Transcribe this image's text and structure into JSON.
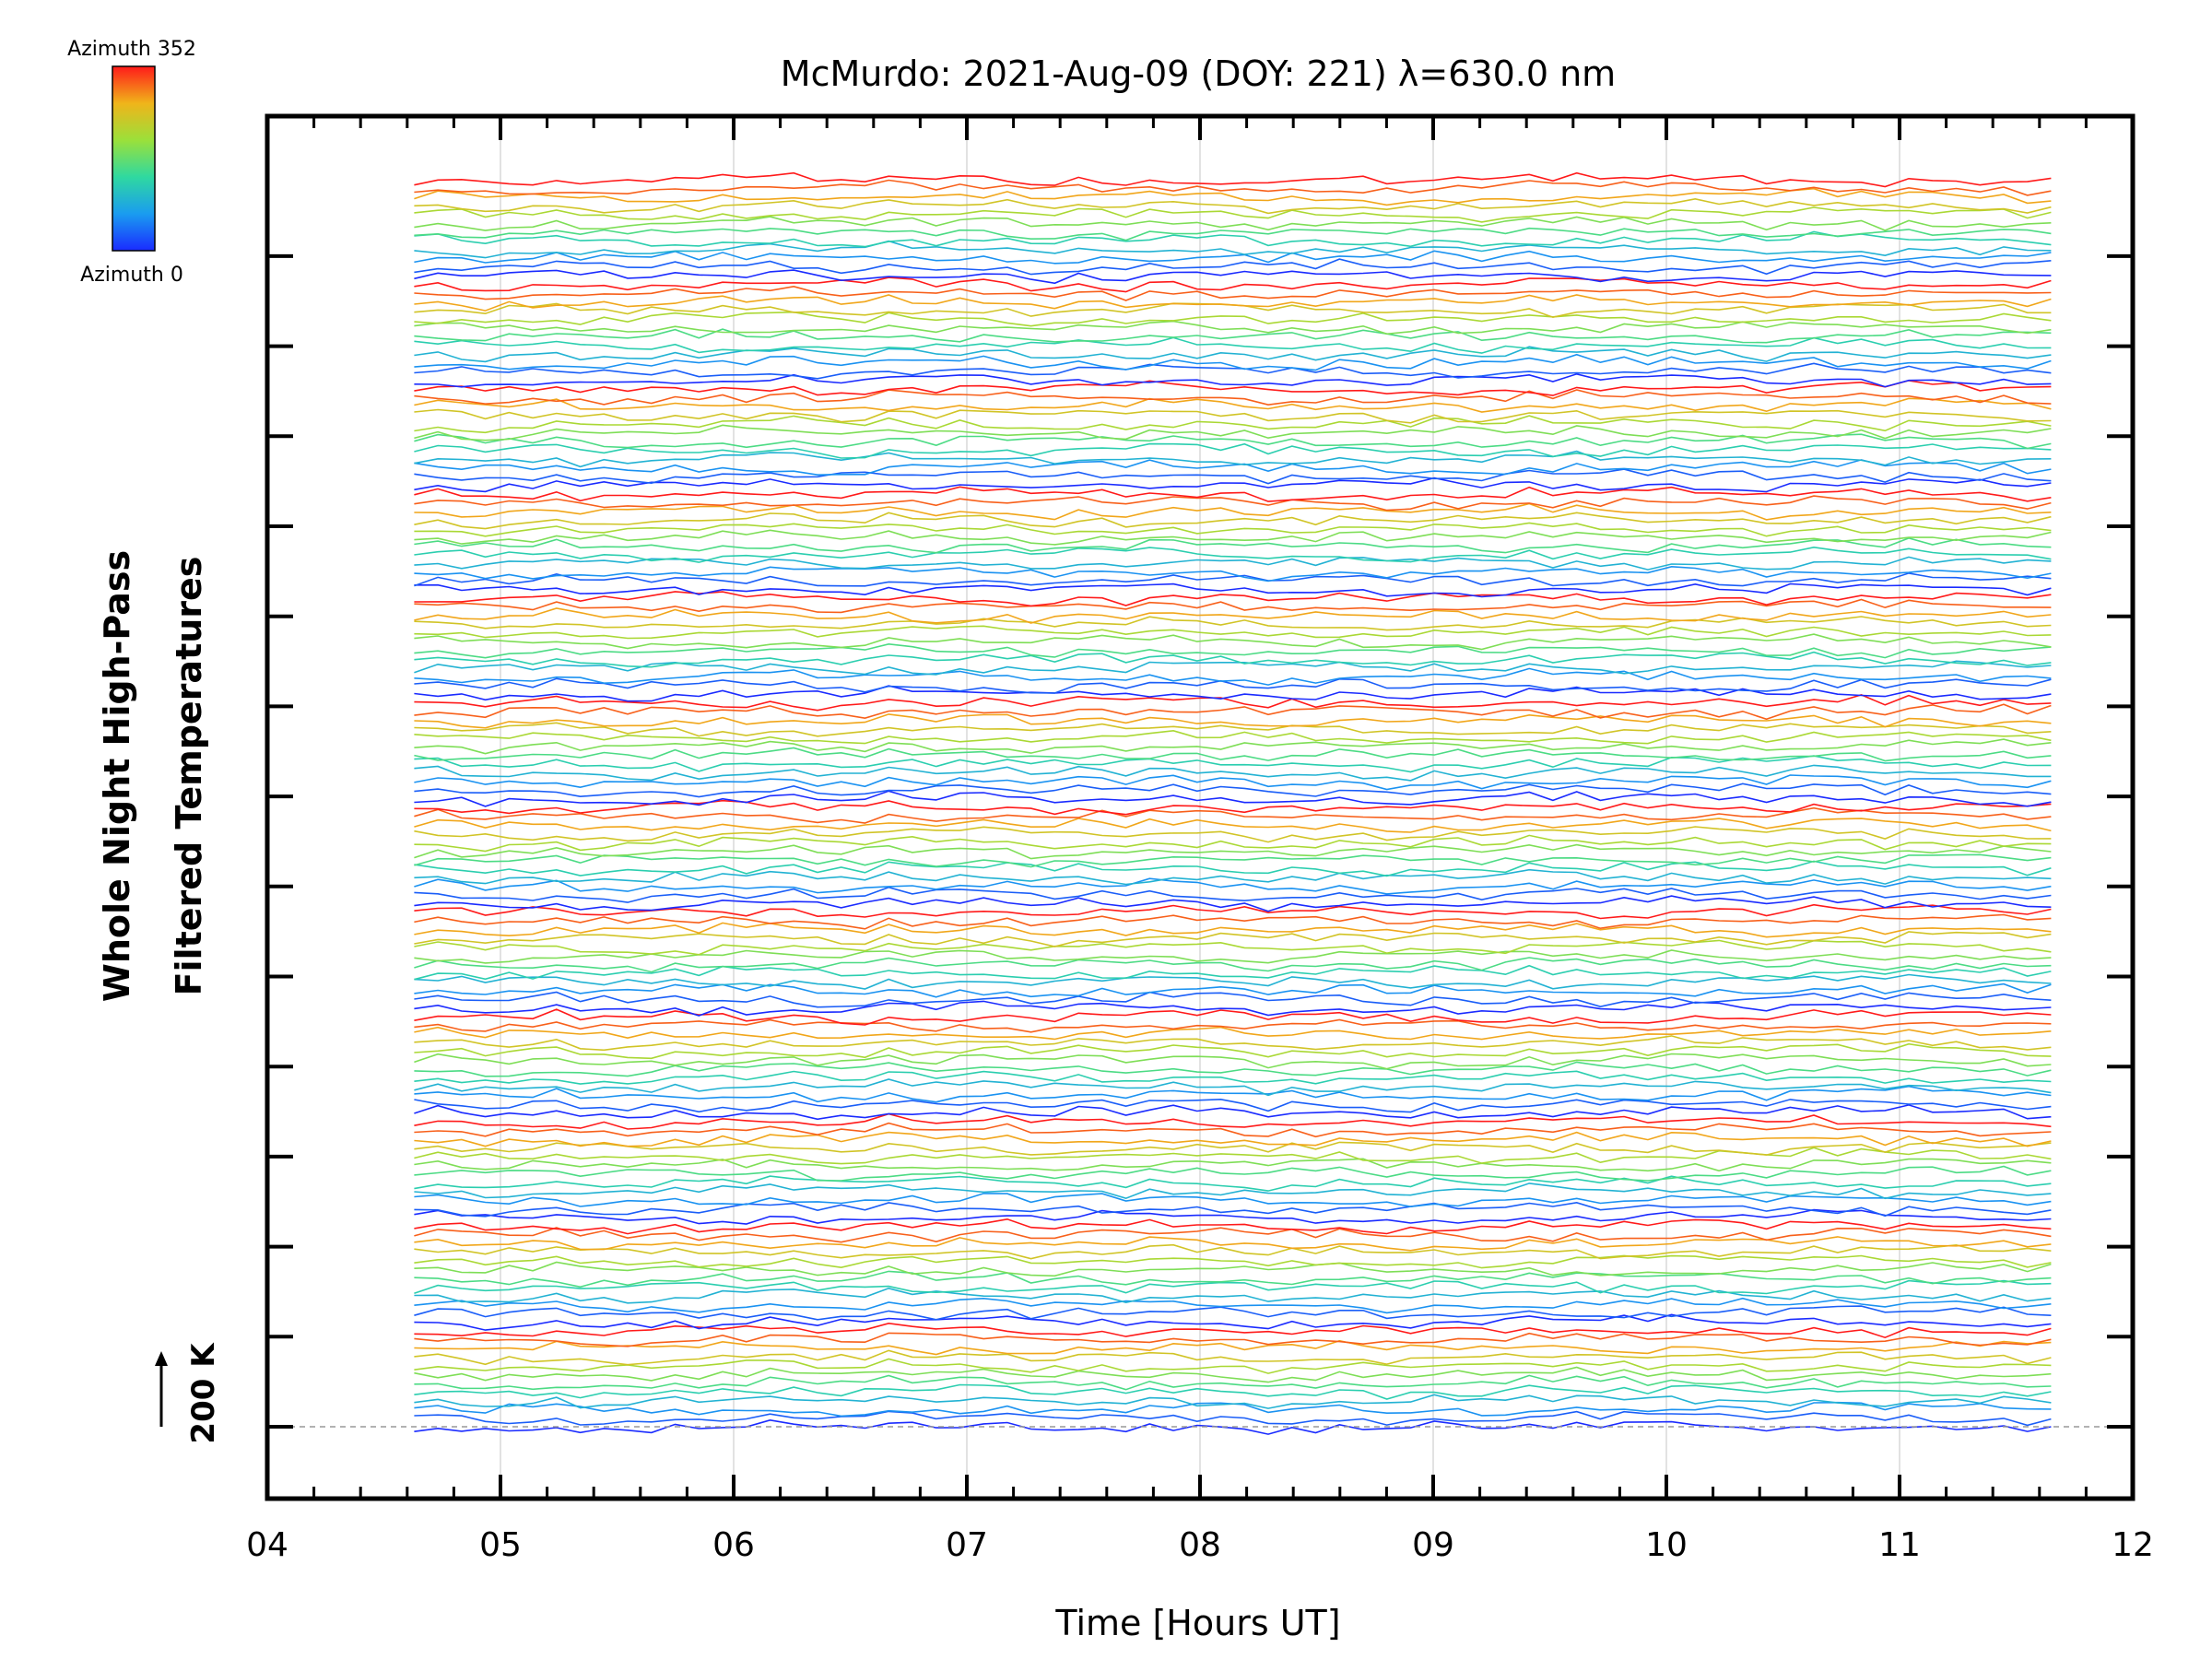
{
  "chart_data": {
    "type": "line",
    "title": "McMurdo: 2021-Aug-09 (DOY: 221) λ=630.0 nm",
    "xlabel": "Time [Hours UT]",
    "ylabel_lines": [
      "Whole Night High-Pass",
      "Filtered Temperatures"
    ],
    "xlim": [
      4,
      12
    ],
    "x_ticks": [
      "04",
      "05",
      "06",
      "07",
      "08",
      "09",
      "10",
      "11",
      "12"
    ],
    "time_range_hours": [
      4.63,
      11.65
    ],
    "scale_bar": "200 K",
    "colorbar": {
      "top_label": "Azimuth  352",
      "bottom_label": "Azimuth  0"
    },
    "grid": "vertical",
    "series_description": "stacked high-pass filtered temperature traces colored by azimuth (blue=0 to red=352), offset vertically",
    "groups": 12,
    "traces_per_group": 12
  }
}
